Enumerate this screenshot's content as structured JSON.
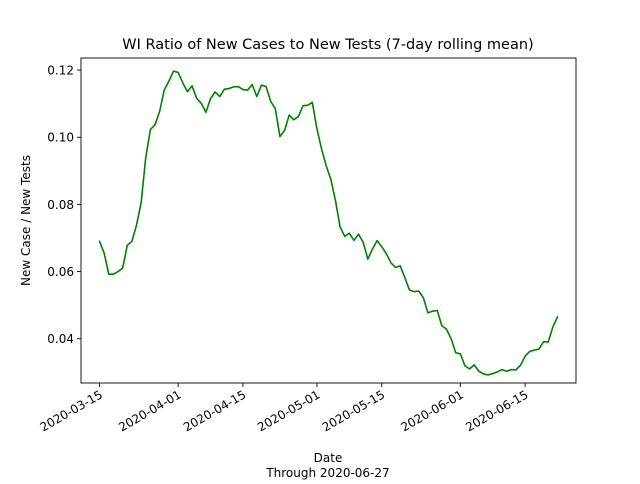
{
  "chart_data": {
    "type": "line",
    "title": "WI Ratio of New Cases to New Tests (7-day rolling mean)",
    "xlabel": "Date",
    "xlabel_sub": "Through 2020-06-27",
    "ylabel": "New Case / New Tests",
    "xlim": [
      "2020-03-11",
      "2020-06-26"
    ],
    "ylim": [
      0.0268,
      0.1236
    ],
    "x_ticks": [
      "2020-03-15",
      "2020-04-01",
      "2020-04-15",
      "2020-05-01",
      "2020-05-15",
      "2020-06-01",
      "2020-06-15"
    ],
    "y_ticks": [
      0.04,
      0.06,
      0.08,
      0.1,
      0.12
    ],
    "y_tick_labels": [
      "0.04",
      "0.06",
      "0.08",
      "0.10",
      "0.12"
    ],
    "grid": false,
    "line_color": "#008000",
    "series": [
      {
        "x": [
          "2020-03-15",
          "2020-03-16",
          "2020-03-17",
          "2020-03-18",
          "2020-03-19",
          "2020-03-20",
          "2020-03-21",
          "2020-03-22",
          "2020-03-23",
          "2020-03-24",
          "2020-03-25",
          "2020-03-26",
          "2020-03-27",
          "2020-03-28",
          "2020-03-29",
          "2020-03-30",
          "2020-03-31",
          "2020-04-01",
          "2020-04-02",
          "2020-04-03",
          "2020-04-04",
          "2020-04-05",
          "2020-04-06",
          "2020-04-07",
          "2020-04-08",
          "2020-04-09",
          "2020-04-10",
          "2020-04-11",
          "2020-04-12",
          "2020-04-13",
          "2020-04-14",
          "2020-04-15",
          "2020-04-16",
          "2020-04-17",
          "2020-04-18",
          "2020-04-19",
          "2020-04-20",
          "2020-04-21",
          "2020-04-22",
          "2020-04-23",
          "2020-04-24",
          "2020-04-25",
          "2020-04-26",
          "2020-04-27",
          "2020-04-28",
          "2020-04-29",
          "2020-04-30",
          "2020-05-01",
          "2020-05-02",
          "2020-05-03",
          "2020-05-04",
          "2020-05-05",
          "2020-05-06",
          "2020-05-07",
          "2020-05-08",
          "2020-05-09",
          "2020-05-10",
          "2020-05-11",
          "2020-05-12",
          "2020-05-13",
          "2020-05-14",
          "2020-05-15",
          "2020-05-16",
          "2020-05-17",
          "2020-05-18",
          "2020-05-19",
          "2020-05-20",
          "2020-05-21",
          "2020-05-22",
          "2020-05-23",
          "2020-05-24",
          "2020-05-25",
          "2020-05-26",
          "2020-05-27",
          "2020-05-28",
          "2020-05-29",
          "2020-05-30",
          "2020-05-31",
          "2020-06-01",
          "2020-06-02",
          "2020-06-03",
          "2020-06-04",
          "2020-06-05",
          "2020-06-06",
          "2020-06-07",
          "2020-06-08",
          "2020-06-09",
          "2020-06-10",
          "2020-06-11",
          "2020-06-12",
          "2020-06-13",
          "2020-06-14",
          "2020-06-15",
          "2020-06-16",
          "2020-06-17",
          "2020-06-18",
          "2020-06-19",
          "2020-06-20",
          "2020-06-21",
          "2020-06-22"
        ],
        "y": [
          0.069,
          0.0655,
          0.0592,
          0.0592,
          0.06,
          0.061,
          0.0678,
          0.069,
          0.0738,
          0.0805,
          0.094,
          0.1023,
          0.1037,
          0.1077,
          0.1141,
          0.1167,
          0.1197,
          0.1193,
          0.1162,
          0.1136,
          0.1153,
          0.1116,
          0.1101,
          0.1074,
          0.1115,
          0.1135,
          0.1121,
          0.1143,
          0.1145,
          0.115,
          0.1151,
          0.1142,
          0.114,
          0.1157,
          0.1121,
          0.1155,
          0.1151,
          0.1107,
          0.1085,
          0.1002,
          0.102,
          0.1066,
          0.1052,
          0.1062,
          0.1094,
          0.1095,
          0.1104,
          0.1025,
          0.0965,
          0.0915,
          0.0875,
          0.0812,
          0.0733,
          0.0705,
          0.0714,
          0.0693,
          0.0711,
          0.0687,
          0.0637,
          0.0667,
          0.0692,
          0.0674,
          0.0653,
          0.0626,
          0.0612,
          0.0617,
          0.0582,
          0.0545,
          0.054,
          0.0542,
          0.0522,
          0.0477,
          0.0482,
          0.0484,
          0.0439,
          0.0428,
          0.04,
          0.0358,
          0.0355,
          0.0319,
          0.031,
          0.0322,
          0.0303,
          0.0295,
          0.0292,
          0.0296,
          0.0301,
          0.0308,
          0.0303,
          0.0308,
          0.0307,
          0.0321,
          0.0348,
          0.0362,
          0.0366,
          0.0369,
          0.0391,
          0.039,
          0.0435,
          0.0465
        ]
      }
    ]
  }
}
